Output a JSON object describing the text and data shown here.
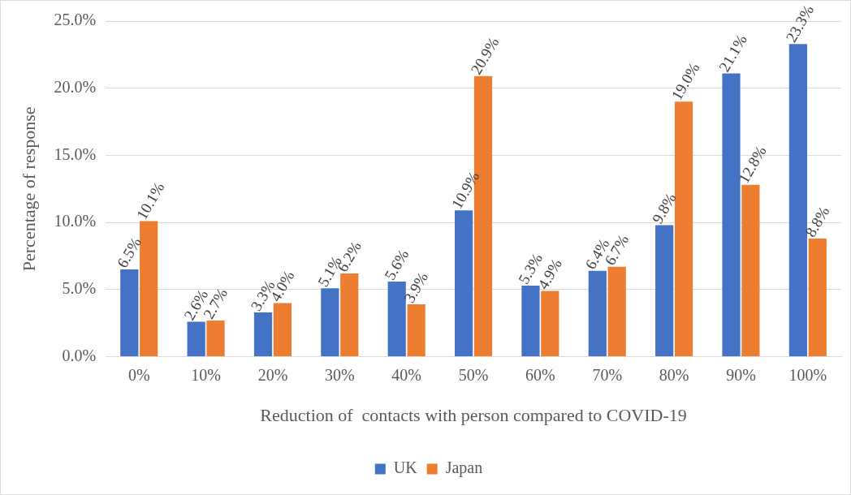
{
  "chart_data": {
    "type": "bar",
    "xlabel": "Reduction of  contacts with person compared to COVID-19",
    "ylabel": "Percentage of response",
    "categories": [
      "0%",
      "10%",
      "20%",
      "30%",
      "40%",
      "50%",
      "60%",
      "70%",
      "80%",
      "90%",
      "100%"
    ],
    "series": [
      {
        "name": "UK",
        "color": "#4472c4",
        "values": [
          6.5,
          2.6,
          3.3,
          5.1,
          5.6,
          10.9,
          5.3,
          6.4,
          9.8,
          21.1,
          23.3
        ],
        "value_labels": [
          "6.5%",
          "2.6%",
          "3.3%",
          "5.1%",
          "5.6%",
          "10.9%",
          "5.3%",
          "6.4%",
          "9.8%",
          "21.1%",
          "23.3%"
        ]
      },
      {
        "name": "Japan",
        "color": "#ed7d31",
        "values": [
          10.1,
          2.7,
          4.0,
          6.2,
          3.9,
          20.9,
          4.9,
          6.7,
          19.0,
          12.8,
          8.8
        ],
        "value_labels": [
          "10.1%",
          "2.7%",
          "4.0%",
          "6.2%",
          "3.9%",
          "20.9%",
          "4.9%",
          "6.7%",
          "19.0%",
          "12.8%",
          "8.8%"
        ]
      }
    ],
    "ylim": [
      0,
      25
    ],
    "yticks": [
      {
        "value": 0,
        "label": "0.0%"
      },
      {
        "value": 5,
        "label": "5.0%"
      },
      {
        "value": 10,
        "label": "10.0%"
      },
      {
        "value": 15,
        "label": "15.0%"
      },
      {
        "value": 20,
        "label": "20.0%"
      },
      {
        "value": 25,
        "label": "25.0%"
      }
    ],
    "grid": "y",
    "legend": "bottom"
  }
}
